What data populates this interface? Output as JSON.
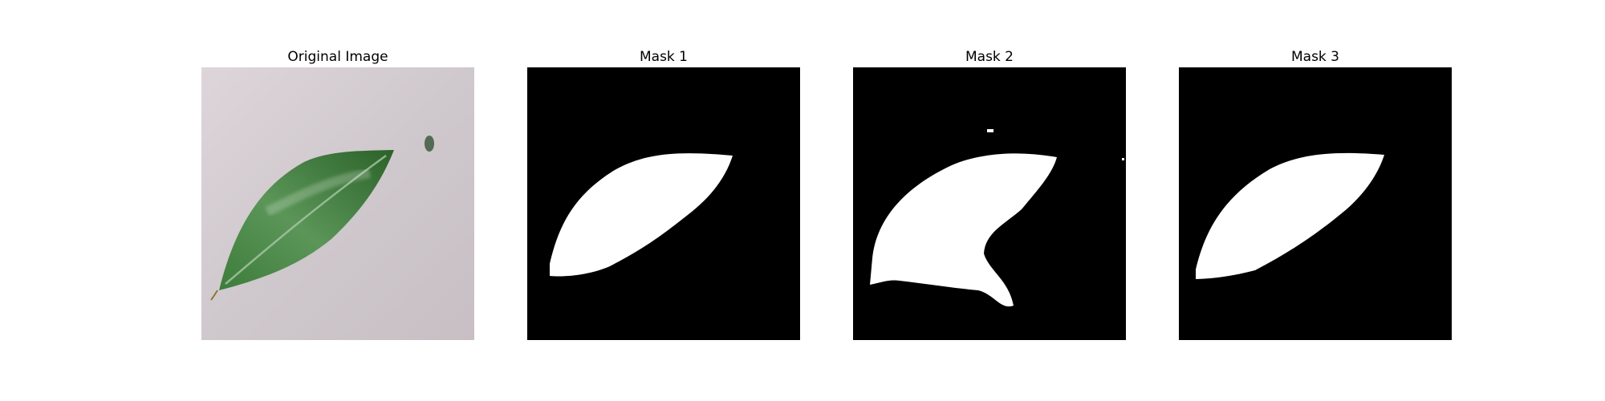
{
  "panels": [
    {
      "title": "Original Image"
    },
    {
      "title": "Mask 1"
    },
    {
      "title": "Mask 2"
    },
    {
      "title": "Mask 3"
    }
  ],
  "colors": {
    "background": "#cfc8cc",
    "leaf_dark": "#2f6e2e",
    "leaf_mid": "#4f8c4f",
    "mask_bg": "#000000",
    "mask_fg": "#ffffff"
  }
}
